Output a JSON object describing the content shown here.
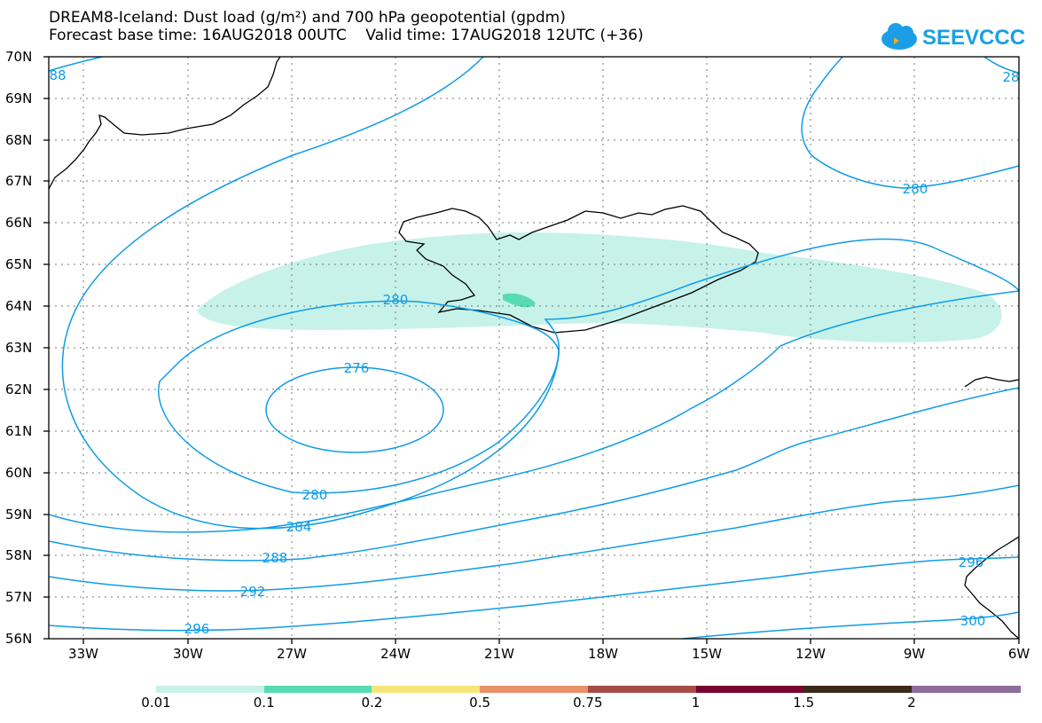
{
  "title_line1": "DREAM8-Iceland: Dust load (g/m²) and 700 hPa geopotential (gpdm)",
  "title_line2": "Forecast base time: 16AUG2018 00UTC    Valid time: 17AUG2018 12UTC (+36)",
  "logo_text": "SEEVCCC",
  "lat_labels": [
    "70N",
    "69N",
    "68N",
    "67N",
    "66N",
    "65N",
    "64N",
    "63N",
    "62N",
    "61N",
    "60N",
    "59N",
    "58N",
    "57N",
    "56N"
  ],
  "lon_labels": [
    "33W",
    "30W",
    "27W",
    "24W",
    "21W",
    "18W",
    "15W",
    "12W",
    "9W",
    "6W"
  ],
  "contour_labels": [
    "88",
    "28",
    "280",
    "280",
    "276",
    "280",
    "284",
    "288",
    "292",
    "296",
    "296",
    "300"
  ],
  "colorbar": {
    "labels": [
      "0.01",
      "0.1",
      "0.2",
      "0.5",
      "0.75",
      "1",
      "1.5",
      "2"
    ],
    "colors": [
      "#c6f2ea",
      "#56dbb2",
      "#f7e57a",
      "#e8916a",
      "#a54d45",
      "#7a0430",
      "#3b2a17",
      "#8e6c9b"
    ]
  },
  "colors": {
    "contour": "#0f9ce6",
    "grid": "#777777",
    "coast": "#000000"
  }
}
